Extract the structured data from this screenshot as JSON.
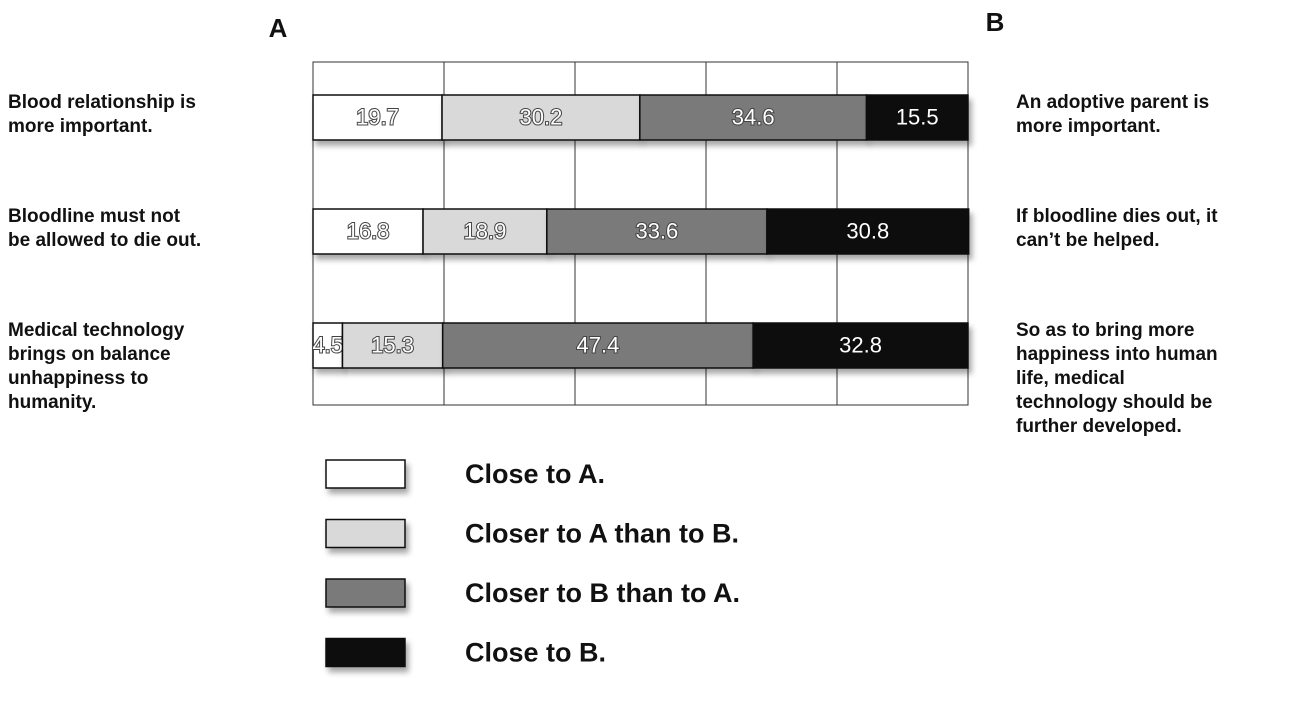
{
  "chart_data": {
    "type": "stacked-bar-horizontal",
    "header_left": "A",
    "header_right": "B",
    "left_labels": [
      [
        "Blood relationship is",
        "more important."
      ],
      [
        "Bloodline must not",
        "be allowed to die out."
      ],
      [
        "Medical technology",
        "brings on balance",
        "unhappiness to",
        "humanity."
      ]
    ],
    "right_labels": [
      [
        "An adoptive parent is",
        "more  important."
      ],
      [
        "If bloodline dies out, it",
        "can’t be helped."
      ],
      [
        "So as to bring more",
        "happiness into human",
        "life, medical",
        "technology should be",
        "further developed."
      ]
    ],
    "series": [
      {
        "name": "Close to A.",
        "color": "#ffffff",
        "values": [
          19.7,
          16.8,
          4.5
        ]
      },
      {
        "name": "Closer to A than to B.",
        "color": "#d9d9d9",
        "values": [
          30.2,
          18.9,
          15.3
        ]
      },
      {
        "name": "Closer to B than to A.",
        "color": "#7a7a7a",
        "values": [
          34.6,
          33.6,
          47.4
        ]
      },
      {
        "name": "Close to B.",
        "color": "#111111",
        "values": [
          15.5,
          30.8,
          32.8
        ]
      }
    ],
    "xlim": [
      0,
      100
    ],
    "xticks": [
      0,
      20,
      40,
      60,
      80,
      100
    ],
    "grid": true
  }
}
